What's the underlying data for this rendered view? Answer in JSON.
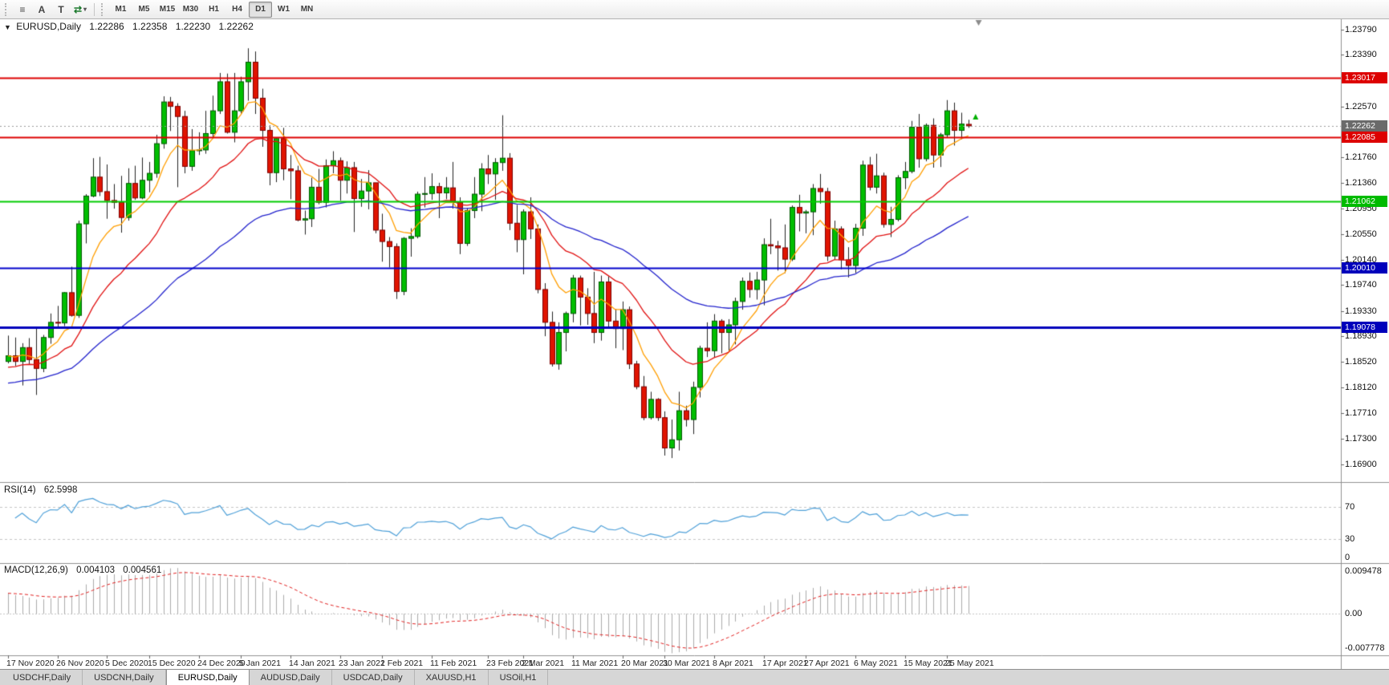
{
  "toolbar": {
    "icons": [
      {
        "name": "chart-list-icon",
        "glyph": "≡",
        "caret": false
      },
      {
        "name": "font-a-icon",
        "glyph": "A",
        "caret": false
      },
      {
        "name": "text-t-icon",
        "glyph": "T",
        "caret": false
      },
      {
        "name": "cycle-arrows-icon",
        "glyph": "⇄",
        "caret": true
      }
    ],
    "timeframes": [
      "M1",
      "M5",
      "M15",
      "M30",
      "H1",
      "H4",
      "D1",
      "W1",
      "MN"
    ],
    "active_timeframe": "D1"
  },
  "main_chart": {
    "collapse_glyph": "▼",
    "symbol_title": "EURUSD,Daily",
    "ohlc": {
      "open": "1.22286",
      "high": "1.22358",
      "low": "1.22230",
      "close": "1.22262"
    },
    "price_axis": {
      "ticks": [
        "1.23790",
        "1.23390",
        "1.22570",
        "1.21760",
        "1.21360",
        "1.20950",
        "1.20550",
        "1.20140",
        "1.19740",
        "1.19330",
        "1.18930",
        "1.18520",
        "1.18120",
        "1.17710",
        "1.17300",
        "1.16900"
      ],
      "badges": [
        {
          "label": "1.23017",
          "price": 1.23017,
          "color": "#dd0000",
          "text_color": "#ffffff"
        },
        {
          "label": "1.22262",
          "price": 1.22262,
          "color": "#6a6a6a",
          "text_color": "#ffffff"
        },
        {
          "label": "1.22085",
          "price": 1.22085,
          "color": "#dd0000",
          "text_color": "#ffffff"
        },
        {
          "label": "1.21062",
          "price": 1.21062,
          "color": "#00bb00",
          "text_color": "#ffffff"
        },
        {
          "label": "1.20010",
          "price": 1.2001,
          "color": "#0000bb",
          "text_color": "#ffffff"
        },
        {
          "label": "1.19078",
          "price": 1.19078,
          "color": "#0000bb",
          "text_color": "#ffffff"
        }
      ]
    },
    "shift_marker": {
      "color": "#8c8c8c"
    }
  },
  "rsi": {
    "label": "RSI(14)",
    "value": "62.5998",
    "axis_labels": [
      {
        "text": "70",
        "value": 70
      },
      {
        "text": "30",
        "value": 30
      },
      {
        "text": "0",
        "value": 0
      }
    ]
  },
  "macd": {
    "label": "MACD(12,26,9)",
    "value_macd": "0.004103",
    "value_signal": "0.004561",
    "axis_labels": [
      {
        "text": "0.009478",
        "value": 0.009478
      },
      {
        "text": "0.00",
        "value": 0
      },
      {
        "text": "-0.007778",
        "value": -0.007778
      }
    ]
  },
  "tabs": [
    {
      "label": "USDCHF,Daily",
      "active": false
    },
    {
      "label": "USDCNH,Daily",
      "active": false
    },
    {
      "label": "EURUSD,Daily",
      "active": true
    },
    {
      "label": "AUDUSD,Daily",
      "active": false
    },
    {
      "label": "USDCAD,Daily",
      "active": false
    },
    {
      "label": "XAUUSD,H1",
      "active": false
    },
    {
      "label": "USOil,H1",
      "active": false
    }
  ],
  "chart_data": {
    "type": "candlestick",
    "symbol": "EURUSD",
    "timeframe": "Daily",
    "bars": 137,
    "last_bar": {
      "open": 1.22286,
      "high": 1.22358,
      "low": 1.2223,
      "close": 1.22262
    },
    "up_color": "#00be00",
    "down_color": "#e01400",
    "wick_color": "#222222",
    "price_range": {
      "min": 1.1662,
      "max": 1.2395
    },
    "candles": [
      [
        1.1853,
        1.1894,
        1.185,
        1.1862
      ],
      [
        1.1862,
        1.1891,
        1.1846,
        1.1853
      ],
      [
        1.1853,
        1.1882,
        1.1815,
        1.1875
      ],
      [
        1.1875,
        1.189,
        1.1849,
        1.1856
      ],
      [
        1.1856,
        1.1906,
        1.18,
        1.1842
      ],
      [
        1.1842,
        1.1895,
        1.1836,
        1.1891
      ],
      [
        1.1891,
        1.1929,
        1.1881,
        1.1915
      ],
      [
        1.1915,
        1.1941,
        1.1905,
        1.1914
      ],
      [
        1.1914,
        1.1963,
        1.1909,
        1.1962
      ],
      [
        1.1962,
        1.2003,
        1.1924,
        1.1926
      ],
      [
        1.1926,
        1.2076,
        1.1922,
        1.2071
      ],
      [
        1.2071,
        1.2118,
        1.204,
        1.2115
      ],
      [
        1.2115,
        1.2175,
        1.2113,
        1.2145
      ],
      [
        1.2145,
        1.2177,
        1.2115,
        1.2122
      ],
      [
        1.2122,
        1.2165,
        1.2079,
        1.2108
      ],
      [
        1.2108,
        1.2134,
        1.2095,
        1.2105
      ],
      [
        1.2105,
        1.2147,
        1.2057,
        1.2081
      ],
      [
        1.2081,
        1.2159,
        1.2076,
        1.2135
      ],
      [
        1.2135,
        1.2163,
        1.2109,
        1.2112
      ],
      [
        1.2112,
        1.2176,
        1.211,
        1.214
      ],
      [
        1.214,
        1.2169,
        1.2121,
        1.2151
      ],
      [
        1.2151,
        1.2212,
        1.2144,
        1.2198
      ],
      [
        1.2198,
        1.2273,
        1.219,
        1.2264
      ],
      [
        1.2264,
        1.2272,
        1.2218,
        1.2257
      ],
      [
        1.2257,
        1.2262,
        1.2129,
        1.2241
      ],
      [
        1.2241,
        1.225,
        1.2151,
        1.2162
      ],
      [
        1.2162,
        1.2221,
        1.2155,
        1.2187
      ],
      [
        1.2187,
        1.2216,
        1.218,
        1.2188
      ],
      [
        1.2188,
        1.225,
        1.2182,
        1.2214
      ],
      [
        1.2214,
        1.2274,
        1.2208,
        1.225
      ],
      [
        1.225,
        1.231,
        1.2245,
        1.2296
      ],
      [
        1.2296,
        1.2309,
        1.2214,
        1.2216
      ],
      [
        1.2216,
        1.231,
        1.22,
        1.225
      ],
      [
        1.225,
        1.2304,
        1.2246,
        1.2296
      ],
      [
        1.2296,
        1.2349,
        1.2266,
        1.2327
      ],
      [
        1.2327,
        1.2344,
        1.2245,
        1.227
      ],
      [
        1.227,
        1.2285,
        1.2193,
        1.2219
      ],
      [
        1.2219,
        1.2227,
        1.2132,
        1.2152
      ],
      [
        1.2152,
        1.2208,
        1.2137,
        1.2206
      ],
      [
        1.2206,
        1.2223,
        1.214,
        1.2158
      ],
      [
        1.2158,
        1.218,
        1.211,
        1.2155
      ],
      [
        1.2155,
        1.2163,
        1.2075,
        1.2077
      ],
      [
        1.2077,
        1.2092,
        1.2054,
        1.2079
      ],
      [
        1.2079,
        1.2144,
        1.2066,
        1.2129
      ],
      [
        1.2129,
        1.2158,
        1.2102,
        1.2105
      ],
      [
        1.2105,
        1.2173,
        1.2097,
        1.2163
      ],
      [
        1.2163,
        1.2186,
        1.2151,
        1.2171
      ],
      [
        1.2171,
        1.2176,
        1.2108,
        1.214
      ],
      [
        1.214,
        1.217,
        1.2119,
        1.216
      ],
      [
        1.216,
        1.2169,
        1.2058,
        1.2111
      ],
      [
        1.2111,
        1.2142,
        1.2098,
        1.2123
      ],
      [
        1.2123,
        1.2156,
        1.2094,
        1.2136
      ],
      [
        1.2136,
        1.2136,
        1.2056,
        1.2061
      ],
      [
        1.2061,
        1.2087,
        1.2011,
        1.2043
      ],
      [
        1.2043,
        1.205,
        1.2002,
        1.2035
      ],
      [
        1.2035,
        1.204,
        1.1952,
        1.1964
      ],
      [
        1.1964,
        1.205,
        1.1958,
        1.2048
      ],
      [
        1.2048,
        1.2064,
        1.2019,
        1.2051
      ],
      [
        1.2051,
        1.2122,
        1.2048,
        1.2118
      ],
      [
        1.2118,
        1.2145,
        1.2097,
        1.2119
      ],
      [
        1.2119,
        1.2151,
        1.2109,
        1.213
      ],
      [
        1.213,
        1.2136,
        1.208,
        1.212
      ],
      [
        1.212,
        1.2145,
        1.211,
        1.2128
      ],
      [
        1.2128,
        1.2169,
        1.2095,
        1.2105
      ],
      [
        1.2105,
        1.2113,
        1.2023,
        1.204
      ],
      [
        1.204,
        1.2096,
        1.2036,
        1.2092
      ],
      [
        1.2092,
        1.2145,
        1.208,
        1.2118
      ],
      [
        1.2118,
        1.2167,
        1.2091,
        1.2158
      ],
      [
        1.2158,
        1.218,
        1.2134,
        1.215
      ],
      [
        1.215,
        1.2175,
        1.2109,
        1.2168
      ],
      [
        1.2168,
        1.2243,
        1.2155,
        1.2175
      ],
      [
        1.2175,
        1.2183,
        1.2061,
        1.2072
      ],
      [
        1.2072,
        1.2101,
        1.2026,
        1.2046
      ],
      [
        1.2046,
        1.2094,
        1.1991,
        1.209
      ],
      [
        1.209,
        1.2113,
        1.2047,
        1.2063
      ],
      [
        1.2063,
        1.207,
        1.1961,
        1.1967
      ],
      [
        1.1967,
        1.1977,
        1.1893,
        1.1915
      ],
      [
        1.1915,
        1.1932,
        1.1845,
        1.1849
      ],
      [
        1.1849,
        1.1915,
        1.184,
        1.1899
      ],
      [
        1.1899,
        1.1932,
        1.1869,
        1.1929
      ],
      [
        1.1929,
        1.199,
        1.1915,
        1.1985
      ],
      [
        1.1985,
        1.1989,
        1.191,
        1.1955
      ],
      [
        1.1955,
        1.1969,
        1.1911,
        1.1929
      ],
      [
        1.1929,
        1.1995,
        1.1882,
        1.1899
      ],
      [
        1.1899,
        1.1989,
        1.1886,
        1.1979
      ],
      [
        1.1979,
        1.1988,
        1.1906,
        1.1917
      ],
      [
        1.1917,
        1.1936,
        1.1874,
        1.1905
      ],
      [
        1.1905,
        1.1948,
        1.1871,
        1.1935
      ],
      [
        1.1935,
        1.194,
        1.1841,
        1.1849
      ],
      [
        1.1849,
        1.1854,
        1.1809,
        1.1813
      ],
      [
        1.1813,
        1.183,
        1.176,
        1.1764
      ],
      [
        1.1764,
        1.1805,
        1.1761,
        1.1793
      ],
      [
        1.1793,
        1.1795,
        1.1759,
        1.1764
      ],
      [
        1.1764,
        1.1774,
        1.1704,
        1.1716
      ],
      [
        1.1716,
        1.1761,
        1.17,
        1.1729
      ],
      [
        1.1729,
        1.1805,
        1.1712,
        1.1775
      ],
      [
        1.1775,
        1.1783,
        1.175,
        1.1761
      ],
      [
        1.1761,
        1.1821,
        1.1738,
        1.1812
      ],
      [
        1.1812,
        1.1878,
        1.1796,
        1.1874
      ],
      [
        1.1874,
        1.1915,
        1.186,
        1.187
      ],
      [
        1.187,
        1.1928,
        1.186,
        1.1917
      ],
      [
        1.1917,
        1.192,
        1.1866,
        1.1899
      ],
      [
        1.1899,
        1.192,
        1.187,
        1.1911
      ],
      [
        1.1911,
        1.1954,
        1.188,
        1.1948
      ],
      [
        1.1948,
        1.1986,
        1.1935,
        1.198
      ],
      [
        1.198,
        1.1994,
        1.1954,
        1.1967
      ],
      [
        1.1967,
        1.1995,
        1.1951,
        1.1982
      ],
      [
        1.1982,
        1.2048,
        1.1942,
        1.2038
      ],
      [
        1.2038,
        1.2079,
        1.2023,
        1.2036
      ],
      [
        1.2036,
        1.2044,
        1.1997,
        1.2033
      ],
      [
        1.2033,
        1.207,
        1.1993,
        1.2015
      ],
      [
        1.2015,
        1.21,
        1.2012,
        1.2097
      ],
      [
        1.2097,
        1.2117,
        1.2059,
        1.2088
      ],
      [
        1.2088,
        1.2093,
        1.2056,
        1.209
      ],
      [
        1.209,
        1.2134,
        1.2053,
        1.2127
      ],
      [
        1.2127,
        1.215,
        1.2103,
        1.2122
      ],
      [
        1.2122,
        1.2128,
        1.2012,
        1.202
      ],
      [
        1.202,
        1.2076,
        1.2014,
        1.2063
      ],
      [
        1.2063,
        1.2067,
        1.1999,
        1.2014
      ],
      [
        1.2014,
        1.2034,
        1.1986,
        1.2005
      ],
      [
        1.2005,
        1.2071,
        1.1993,
        1.2064
      ],
      [
        1.2064,
        1.2171,
        1.2052,
        1.2164
      ],
      [
        1.2164,
        1.2177,
        1.2124,
        1.2129
      ],
      [
        1.2129,
        1.2182,
        1.2119,
        1.2147
      ],
      [
        1.2147,
        1.2152,
        1.2065,
        1.207
      ],
      [
        1.207,
        1.2098,
        1.205,
        1.2078
      ],
      [
        1.2078,
        1.2148,
        1.2075,
        1.2144
      ],
      [
        1.2144,
        1.2169,
        1.2126,
        1.2154
      ],
      [
        1.2154,
        1.2234,
        1.2151,
        1.2224
      ],
      [
        1.2224,
        1.2245,
        1.216,
        1.2174
      ],
      [
        1.2174,
        1.223,
        1.217,
        1.2227
      ],
      [
        1.2227,
        1.2238,
        1.216,
        1.218
      ],
      [
        1.218,
        1.2215,
        1.2161,
        1.2212
      ],
      [
        1.2212,
        1.2267,
        1.2207,
        1.225
      ],
      [
        1.225,
        1.2263,
        1.2195,
        1.2219
      ],
      [
        1.2219,
        1.2247,
        1.2205,
        1.2229
      ],
      [
        1.22286,
        1.22358,
        1.2223,
        1.22262
      ]
    ],
    "x_labels": [
      {
        "text": "17 Nov 2020",
        "bar": 0
      },
      {
        "text": "26 Nov 2020",
        "bar": 7
      },
      {
        "text": "5 Dec 2020",
        "bar": 14
      },
      {
        "text": "15 Dec 2020",
        "bar": 20
      },
      {
        "text": "24 Dec 2020",
        "bar": 27
      },
      {
        "text": "5 Jan 2021",
        "bar": 33
      },
      {
        "text": "14 Jan 2021",
        "bar": 40
      },
      {
        "text": "23 Jan 2021",
        "bar": 47
      },
      {
        "text": "2 Feb 2021",
        "bar": 53
      },
      {
        "text": "11 Feb 2021",
        "bar": 60
      },
      {
        "text": "23 Feb 2021",
        "bar": 68
      },
      {
        "text": "2 Mar 2021",
        "bar": 73
      },
      {
        "text": "11 Mar 2021",
        "bar": 80
      },
      {
        "text": "20 Mar 2021",
        "bar": 87
      },
      {
        "text": "30 Mar 2021",
        "bar": 93
      },
      {
        "text": "8 Apr 2021",
        "bar": 100
      },
      {
        "text": "17 Apr 2021",
        "bar": 107
      },
      {
        "text": "27 Apr 2021",
        "bar": 113
      },
      {
        "text": "6 May 2021",
        "bar": 120
      },
      {
        "text": "15 May 2021",
        "bar": 127
      },
      {
        "text": "25 May 2021",
        "bar": 133
      }
    ],
    "moving_averages": [
      {
        "name": "ma-fast",
        "type": "ema",
        "period": 8,
        "color": "#ff9e00",
        "seed_offset": 0
      },
      {
        "name": "ma-medium",
        "type": "ema",
        "period": 20,
        "color": "#e01010",
        "seed_offset": -0.002
      },
      {
        "name": "ma-slow",
        "type": "ema",
        "period": 50,
        "color": "#2222cc",
        "seed_offset": -0.0045
      }
    ],
    "horizontal_levels": [
      {
        "price": 1.23017,
        "color": "#dd0000",
        "width": 2
      },
      {
        "price": 1.22085,
        "color": "#dd0000",
        "width": 2
      },
      {
        "price": 1.21062,
        "color": "#00cc00",
        "width": 2
      },
      {
        "price": 1.2001,
        "color": "#0000cc",
        "width": 2
      },
      {
        "price": 1.19078,
        "color": "#0000bb",
        "width": 3
      }
    ],
    "current_price_line": {
      "price": 1.22262,
      "color": "#9a9a9a"
    },
    "marker": {
      "bar": 136,
      "price": 1.224,
      "direction": "up",
      "color": "#00b000"
    },
    "indicators": {
      "rsi": {
        "period": 14,
        "color": "#4fa0d8",
        "levels": [
          70,
          30
        ],
        "range": [
          0,
          100
        ]
      },
      "macd": {
        "fast": 12,
        "slow": 26,
        "signal": 9,
        "histogram_color": "#ababab",
        "signal_color": "#e02020",
        "range": [
          -0.007778,
          0.009478
        ],
        "slow_seed_offset": -0.0045
      }
    }
  }
}
